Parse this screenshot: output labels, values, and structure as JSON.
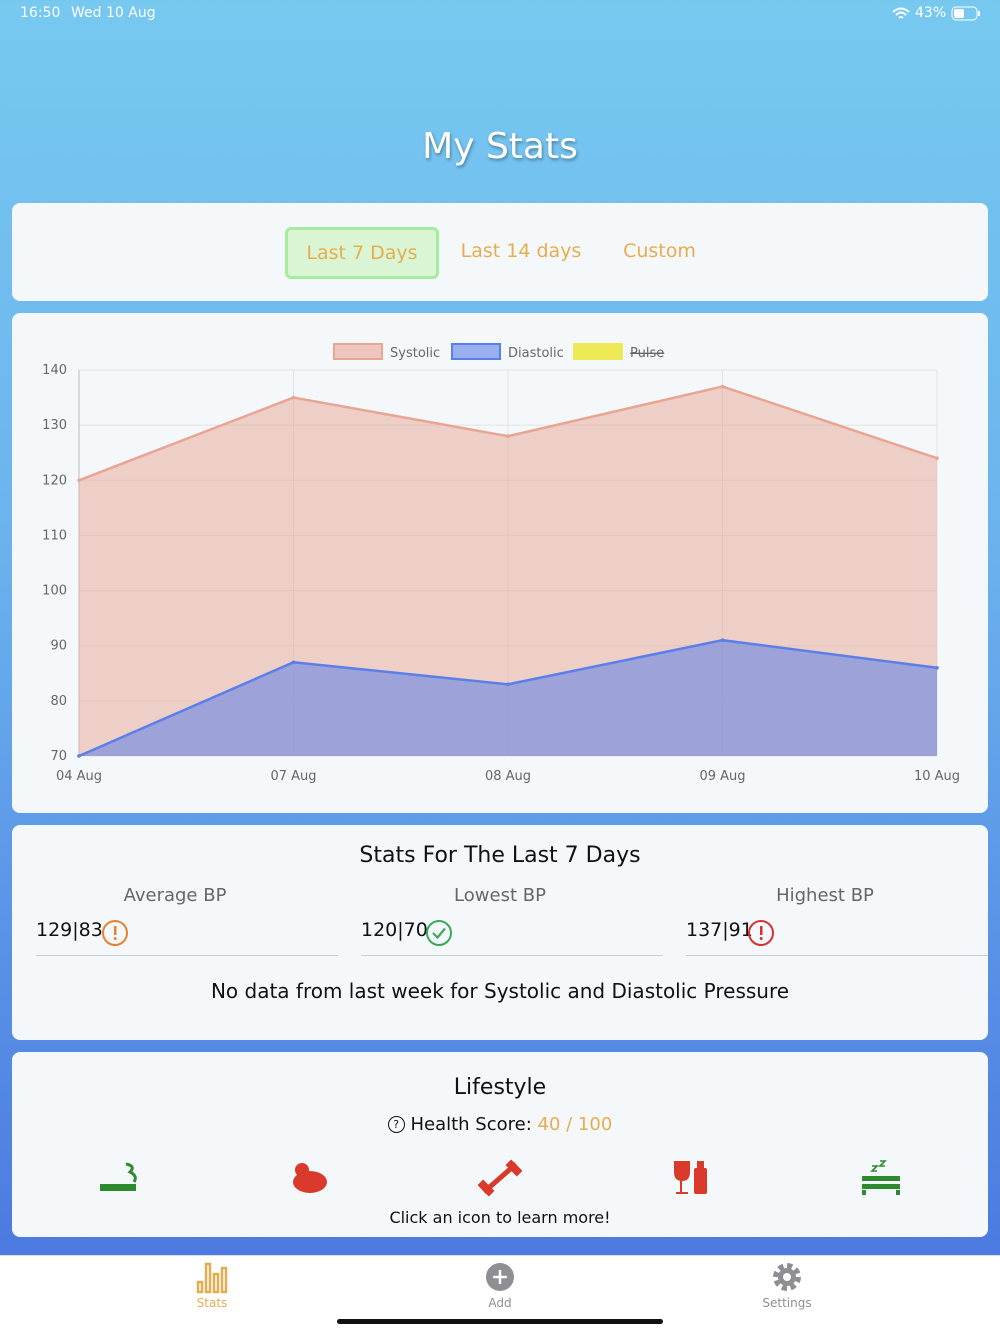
{
  "status": {
    "time": "16:50",
    "date": "Wed 10 Aug",
    "battery": "43%"
  },
  "header": {
    "title": "My Stats"
  },
  "tabs": {
    "items": [
      "Last 7 Days",
      "Last 14 days",
      "Custom"
    ],
    "active": 0
  },
  "chart_data": {
    "type": "area",
    "categories": [
      "04 Aug",
      "07 Aug",
      "08 Aug",
      "09 Aug",
      "10 Aug"
    ],
    "series": [
      {
        "name": "Systolic",
        "color": "#e8a594",
        "values": [
          120,
          135,
          128,
          137,
          124
        ]
      },
      {
        "name": "Diastolic",
        "color": "#5b7fe8",
        "values": [
          70,
          87,
          83,
          91,
          86
        ]
      },
      {
        "name": "Pulse",
        "color": "#eeea55",
        "values": [
          null,
          null,
          null,
          null,
          null
        ],
        "hidden": true
      }
    ],
    "ylim": [
      70,
      140
    ],
    "yticks": [
      70,
      80,
      90,
      100,
      110,
      120,
      130,
      140
    ],
    "grid": true,
    "legend": "top"
  },
  "stats": {
    "title": "Stats For The Last 7 Days",
    "items": [
      {
        "label": "Average BP",
        "value": "129|83",
        "status": "warning"
      },
      {
        "label": "Lowest BP",
        "value": "120|70",
        "status": "ok"
      },
      {
        "label": "Highest BP",
        "value": "137|91",
        "status": "danger"
      }
    ],
    "note": "No data from last week for Systolic and Diastolic Pressure"
  },
  "lifestyle": {
    "title": "Lifestyle",
    "score_label": "Health Score:",
    "score": "40 / 100",
    "hint": "Click an icon to learn more!"
  },
  "nav": {
    "items": [
      "Stats",
      "Add",
      "Settings"
    ],
    "active": 0
  }
}
